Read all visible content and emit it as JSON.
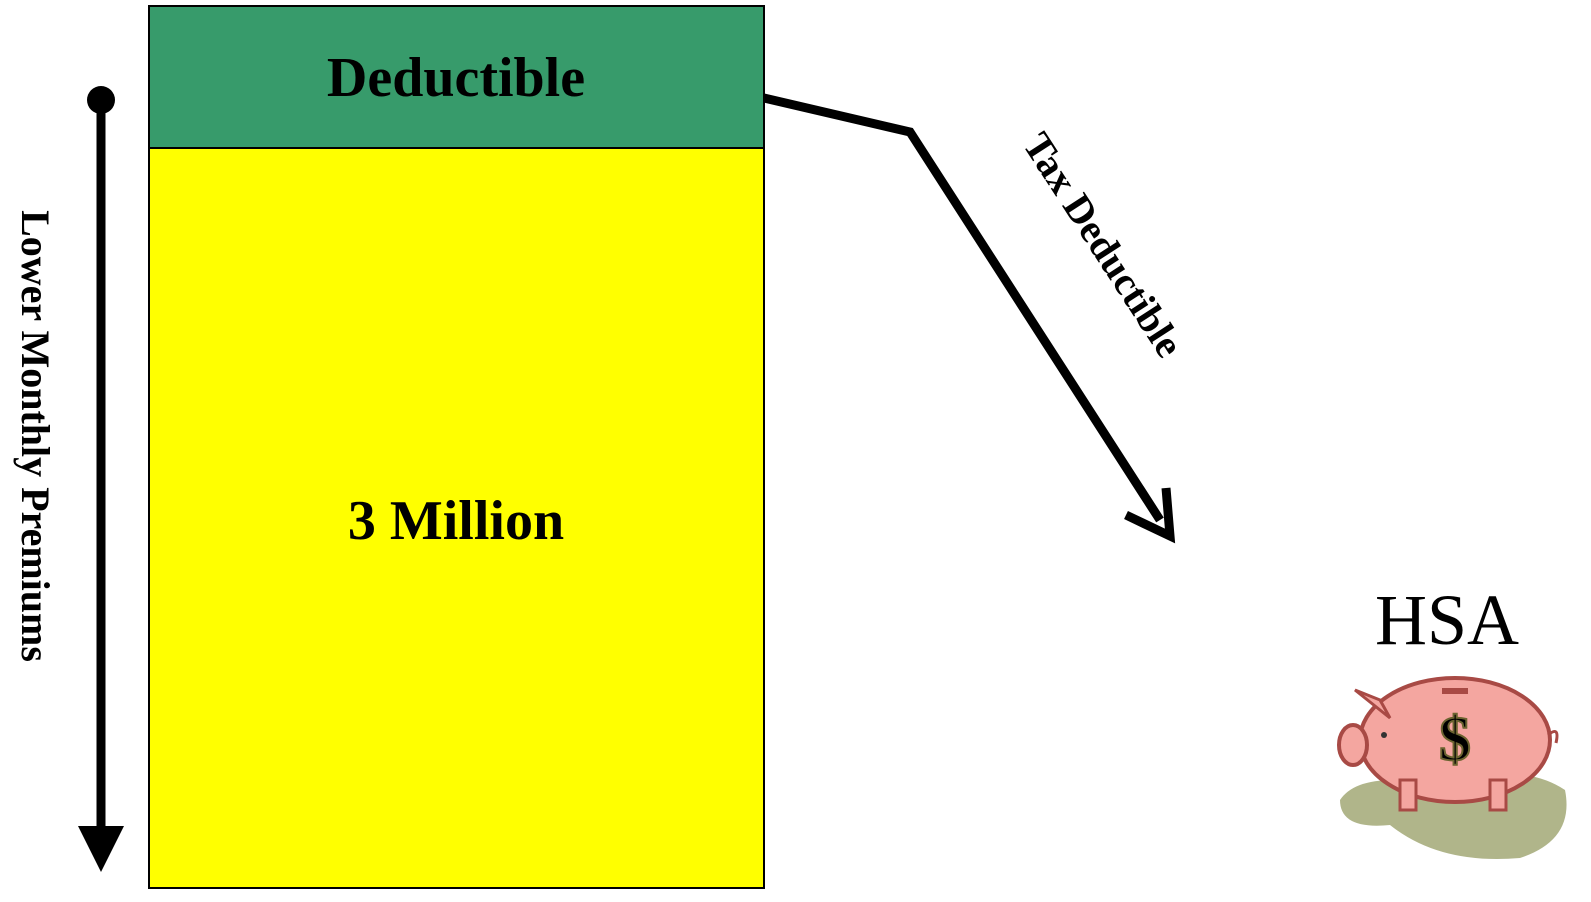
{
  "block": {
    "top_label": "Deductible",
    "main_label": "3 Million"
  },
  "left_arrow": {
    "label": "Lower Monthly Premiums"
  },
  "right_arrow": {
    "label": "Tax Deductible"
  },
  "savings": {
    "title": "HSA",
    "symbol": "$"
  }
}
